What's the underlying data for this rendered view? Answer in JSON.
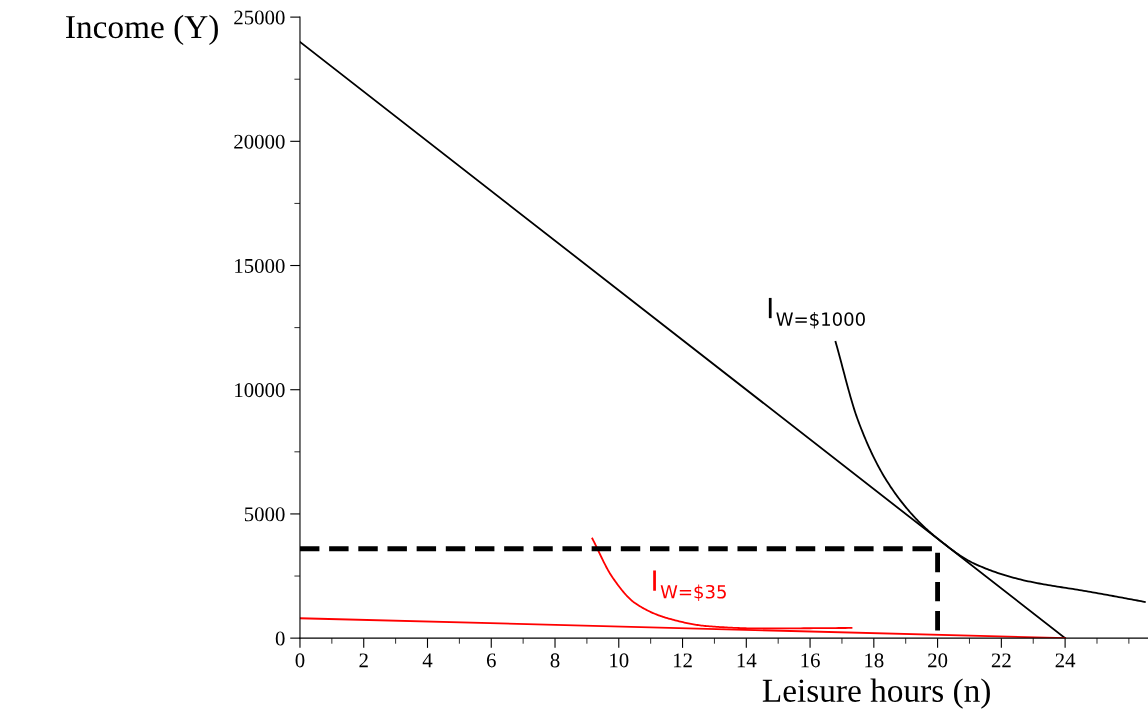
{
  "chart_data": {
    "type": "line",
    "xlabel": "Leisure hours (n)",
    "ylabel": "Income (Y)",
    "xlim": [
      0,
      26.6
    ],
    "ylim": [
      0,
      25000
    ],
    "xticks": [
      0,
      2,
      4,
      6,
      8,
      10,
      12,
      14,
      16,
      18,
      20,
      22,
      24
    ],
    "yticks": [
      0,
      5000,
      10000,
      15000,
      20000,
      25000
    ],
    "grid": false,
    "legend": false,
    "marker": "none",
    "series": [
      {
        "color": "#000000",
        "x": [
          0,
          24
        ],
        "values": [
          24000,
          0
        ],
        "line_style": "solid"
      },
      {
        "color": "#ff0000",
        "x": [
          0,
          24
        ],
        "values": [
          800,
          0
        ],
        "line_style": "solid"
      },
      {
        "color": "#000000",
        "x": [
          16.8,
          17.5,
          18.33,
          19.27,
          20,
          21.15,
          22.7,
          24.8,
          26.5
        ],
        "values": [
          11930,
          8780,
          6490,
          4880,
          4010,
          3000,
          2330,
          1860,
          1460
        ],
        "line_style": "solid"
      },
      {
        "color": "#ff0000",
        "x": [
          9.17,
          9.79,
          10.52,
          11.56,
          12.8,
          14.4,
          17.3
        ],
        "values": [
          4010,
          2470,
          1400,
          790,
          480,
          390,
          410
        ],
        "line_style": "solid"
      },
      {
        "color": "#000000",
        "x": [
          0,
          20,
          20
        ],
        "values": [
          3600,
          3600,
          0
        ],
        "line_style": "dashed"
      }
    ],
    "annotations": [
      {
        "text": "I$_{W=$1000}$",
        "x": 16.8,
        "y": 11930
      },
      {
        "text": "I$_{W=$35}$",
        "x": 11.56,
        "y": 790
      }
    ]
  }
}
